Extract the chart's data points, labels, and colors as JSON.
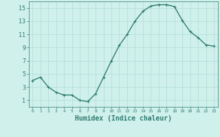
{
  "x": [
    0,
    1,
    2,
    3,
    4,
    5,
    6,
    7,
    8,
    9,
    10,
    11,
    12,
    13,
    14,
    15,
    16,
    17,
    18,
    19,
    20,
    21,
    22,
    23
  ],
  "y": [
    4.0,
    4.5,
    3.0,
    2.2,
    1.8,
    1.8,
    1.0,
    0.8,
    2.0,
    4.5,
    7.0,
    9.3,
    11.0,
    13.0,
    14.5,
    15.3,
    15.5,
    15.5,
    15.2,
    13.1,
    11.4,
    10.5,
    9.4,
    9.2
  ],
  "line_color": "#2e7b6e",
  "marker": "+",
  "marker_size": 3,
  "bg_color": "#cff0eb",
  "grid_color": "#b0ddd6",
  "xlabel": "Humidex (Indice chaleur)",
  "xlabel_fontsize": 7,
  "xlabel_color": "#2e7b6e",
  "tick_color": "#2e7b6e",
  "ylim": [
    0,
    16
  ],
  "xlim": [
    -0.5,
    23.5
  ],
  "yticks": [
    1,
    3,
    5,
    7,
    9,
    11,
    13,
    15
  ],
  "xticks": [
    0,
    1,
    2,
    3,
    4,
    5,
    6,
    7,
    8,
    9,
    10,
    11,
    12,
    13,
    14,
    15,
    16,
    17,
    18,
    19,
    20,
    21,
    22,
    23
  ],
  "line_width": 1.0,
  "spine_color": "#2e7b6e"
}
